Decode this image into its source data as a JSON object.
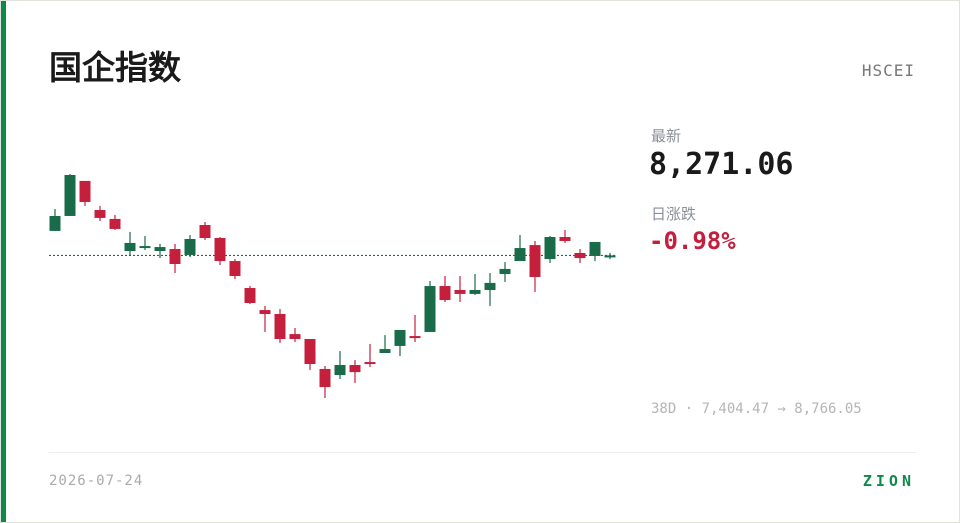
{
  "header": {
    "title": "国企指数",
    "code": "HSCEI"
  },
  "quote": {
    "last_label": "最新",
    "last": "8,271.06",
    "change_label": "日涨跌",
    "change": "-0.98%",
    "range": "38D · 7,404.47 → 8,766.05"
  },
  "footer": {
    "date": "2026-07-24",
    "brand": "ZION"
  },
  "chart_data": {
    "type": "candlestick",
    "up_color": "#1a6b4a",
    "down_color": "#c4203e",
    "ylim": [
      7404.47,
      8766.05
    ],
    "open": [
      8420,
      8511,
      8724,
      8547,
      8493,
      8298,
      8316,
      8298,
      8310,
      8274,
      8456,
      8377,
      8237,
      8073,
      7939,
      7915,
      7793,
      7763,
      7581,
      7544,
      7605,
      7623,
      7678,
      7721,
      7781,
      7806,
      8085,
      8061,
      8037,
      8061,
      8158,
      8237,
      8334,
      8249,
      8383,
      8286,
      8268,
      8261
    ],
    "high": [
      8553,
      8766.05,
      8724,
      8572,
      8517,
      8414,
      8389,
      8341,
      8341,
      8395,
      8474,
      8383,
      8249,
      8085,
      7964,
      7945,
      7830,
      7763,
      7599,
      7690,
      7635,
      7733,
      7787,
      7818,
      7909,
      8116,
      8146,
      8146,
      8158,
      8164,
      8231,
      8395,
      8359,
      8389,
      8426,
      8310,
      8353,
      8286
    ],
    "low": [
      8420,
      8511,
      8572,
      8480,
      8426,
      8274,
      8304,
      8255,
      8164,
      8261,
      8365,
      8213,
      8128,
      7976,
      7806,
      7739,
      7745,
      7575,
      7404.47,
      7520,
      7496,
      7593,
      7678,
      7660,
      7745,
      7806,
      7988,
      7988,
      8031,
      7964,
      8110,
      8237,
      8049,
      8225,
      8347,
      8225,
      8237,
      8249
    ],
    "close": [
      8511,
      8760,
      8596,
      8499,
      8432,
      8347,
      8328,
      8322,
      8219,
      8371,
      8377,
      8237,
      8146,
      7982,
      7915,
      7763,
      7763,
      7611,
      7471,
      7605,
      7562,
      7611,
      7702,
      7818,
      7769,
      8085,
      8000,
      8037,
      8061,
      8104,
      8189,
      8316,
      8140,
      8383,
      8359,
      8255,
      8353,
      8271.06
    ]
  }
}
